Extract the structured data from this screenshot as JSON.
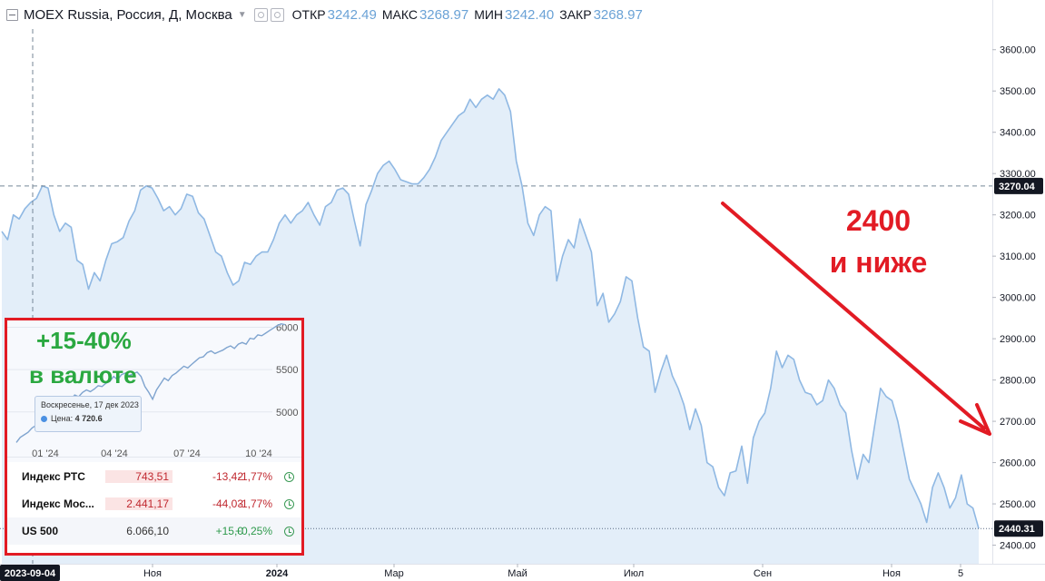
{
  "header": {
    "symbol": "MOEX Russia, Россия, Д, Москва",
    "open_label": "ОТКР",
    "open": "3242.49",
    "high_label": "МАКС",
    "high": "3268.97",
    "low_label": "МИН",
    "low": "3242.40",
    "close_label": "ЗАКР",
    "close": "3268.97"
  },
  "annotations": {
    "target_line1": "2400",
    "target_line2": "и ниже",
    "fx_line1": "+15-40%",
    "fx_line2": "в валюте"
  },
  "colors": {
    "line": "#8fb8e3",
    "area": "#e3eef9",
    "annotation_red": "#e21b24",
    "annotation_green": "#2aa840"
  },
  "chart_data": {
    "type": "area",
    "title": "MOEX Russia",
    "ylim": [
      2355,
      3650
    ],
    "y_ticks": [
      "2400.00",
      "2500.00",
      "2600.00",
      "2700.00",
      "2800.00",
      "2900.00",
      "3000.00",
      "3100.00",
      "3200.00",
      "3300.00",
      "3400.00",
      "3500.00",
      "3600.00"
    ],
    "x_labels": [
      {
        "label": "2023-09-04",
        "highlight": true
      },
      {
        "label": "Ноя"
      },
      {
        "label": "2024"
      },
      {
        "label": "Мар"
      },
      {
        "label": "Май"
      },
      {
        "label": "Июл"
      },
      {
        "label": "Сен"
      },
      {
        "label": "Ноя"
      },
      {
        "label": "5"
      }
    ],
    "crosshair_value": "3270.04",
    "last_value": "2440.31",
    "series": [
      {
        "values": [
          3160,
          3140,
          3200,
          3190,
          3215,
          3230,
          3240,
          3270,
          3265,
          3200,
          3160,
          3180,
          3170,
          3090,
          3080,
          3020,
          3060,
          3040,
          3090,
          3130,
          3135,
          3145,
          3185,
          3210,
          3260,
          3270,
          3265,
          3240,
          3210,
          3220,
          3200,
          3215,
          3250,
          3245,
          3205,
          3190,
          3150,
          3110,
          3100,
          3060,
          3030,
          3040,
          3085,
          3080,
          3100,
          3110,
          3110,
          3140,
          3180,
          3200,
          3180,
          3200,
          3210,
          3230,
          3200,
          3175,
          3220,
          3230,
          3260,
          3265,
          3250,
          3185,
          3125,
          3225,
          3260,
          3300,
          3320,
          3330,
          3310,
          3285,
          3280,
          3275,
          3275,
          3290,
          3310,
          3340,
          3380,
          3400,
          3420,
          3440,
          3450,
          3480,
          3460,
          3480,
          3490,
          3480,
          3505,
          3490,
          3450,
          3330,
          3270,
          3180,
          3150,
          3200,
          3220,
          3210,
          3040,
          3100,
          3140,
          3120,
          3190,
          3150,
          3110,
          2980,
          3010,
          2940,
          2960,
          2990,
          3050,
          3040,
          2950,
          2880,
          2870,
          2770,
          2820,
          2860,
          2810,
          2780,
          2740,
          2680,
          2730,
          2690,
          2600,
          2590,
          2540,
          2520,
          2575,
          2580,
          2640,
          2550,
          2660,
          2700,
          2720,
          2780,
          2870,
          2830,
          2860,
          2850,
          2800,
          2770,
          2765,
          2740,
          2750,
          2800,
          2780,
          2740,
          2720,
          2630,
          2560,
          2620,
          2600,
          2690,
          2780,
          2760,
          2750,
          2700,
          2630,
          2560,
          2530,
          2500,
          2455,
          2540,
          2575,
          2540,
          2490,
          2515,
          2570,
          2500,
          2490,
          2440
        ]
      }
    ]
  },
  "inset": {
    "chart_data": {
      "type": "line",
      "y_ticks": [
        "6000",
        "5500",
        "5000"
      ],
      "x_labels": [
        "01 '24",
        "04 '24",
        "07 '24",
        "10 '24"
      ],
      "values": [
        4640,
        4700,
        4730,
        4760,
        4810,
        4840,
        4870,
        4900,
        4910,
        4940,
        5050,
        5100,
        5120,
        5080,
        5150,
        5200,
        5180,
        5230,
        5260,
        5240,
        5270,
        5310,
        5300,
        5340,
        5360,
        5420,
        5380,
        5440,
        5460,
        5430,
        5450,
        5470,
        5420,
        5300,
        5230,
        5150,
        5260,
        5330,
        5400,
        5370,
        5430,
        5460,
        5500,
        5540,
        5520,
        5560,
        5600,
        5640,
        5650,
        5700,
        5720,
        5690,
        5710,
        5730,
        5760,
        5780,
        5750,
        5800,
        5820,
        5800,
        5870,
        5860,
        5910,
        5900,
        5930,
        5960,
        5990,
        6020,
        6040,
        6030
      ],
      "y_range": [
        4580,
        6080
      ]
    },
    "tooltip": {
      "date": "Воскресенье, 17 дек 2023",
      "price_label": "Цена:",
      "price": "4 720.6"
    },
    "rows": [
      {
        "name": "Индекс РТС",
        "price": "743,51",
        "change": "-13,42",
        "pct": "-1,77%",
        "dir": "neg"
      },
      {
        "name": "Индекс Мос...",
        "price": "2.441,17",
        "change": "-44,03",
        "pct": "-1,77%",
        "dir": "neg"
      },
      {
        "name": "US 500",
        "price": "6.066,10",
        "change": "+15,0",
        "pct": "+0,25%",
        "dir": "pos"
      }
    ]
  }
}
